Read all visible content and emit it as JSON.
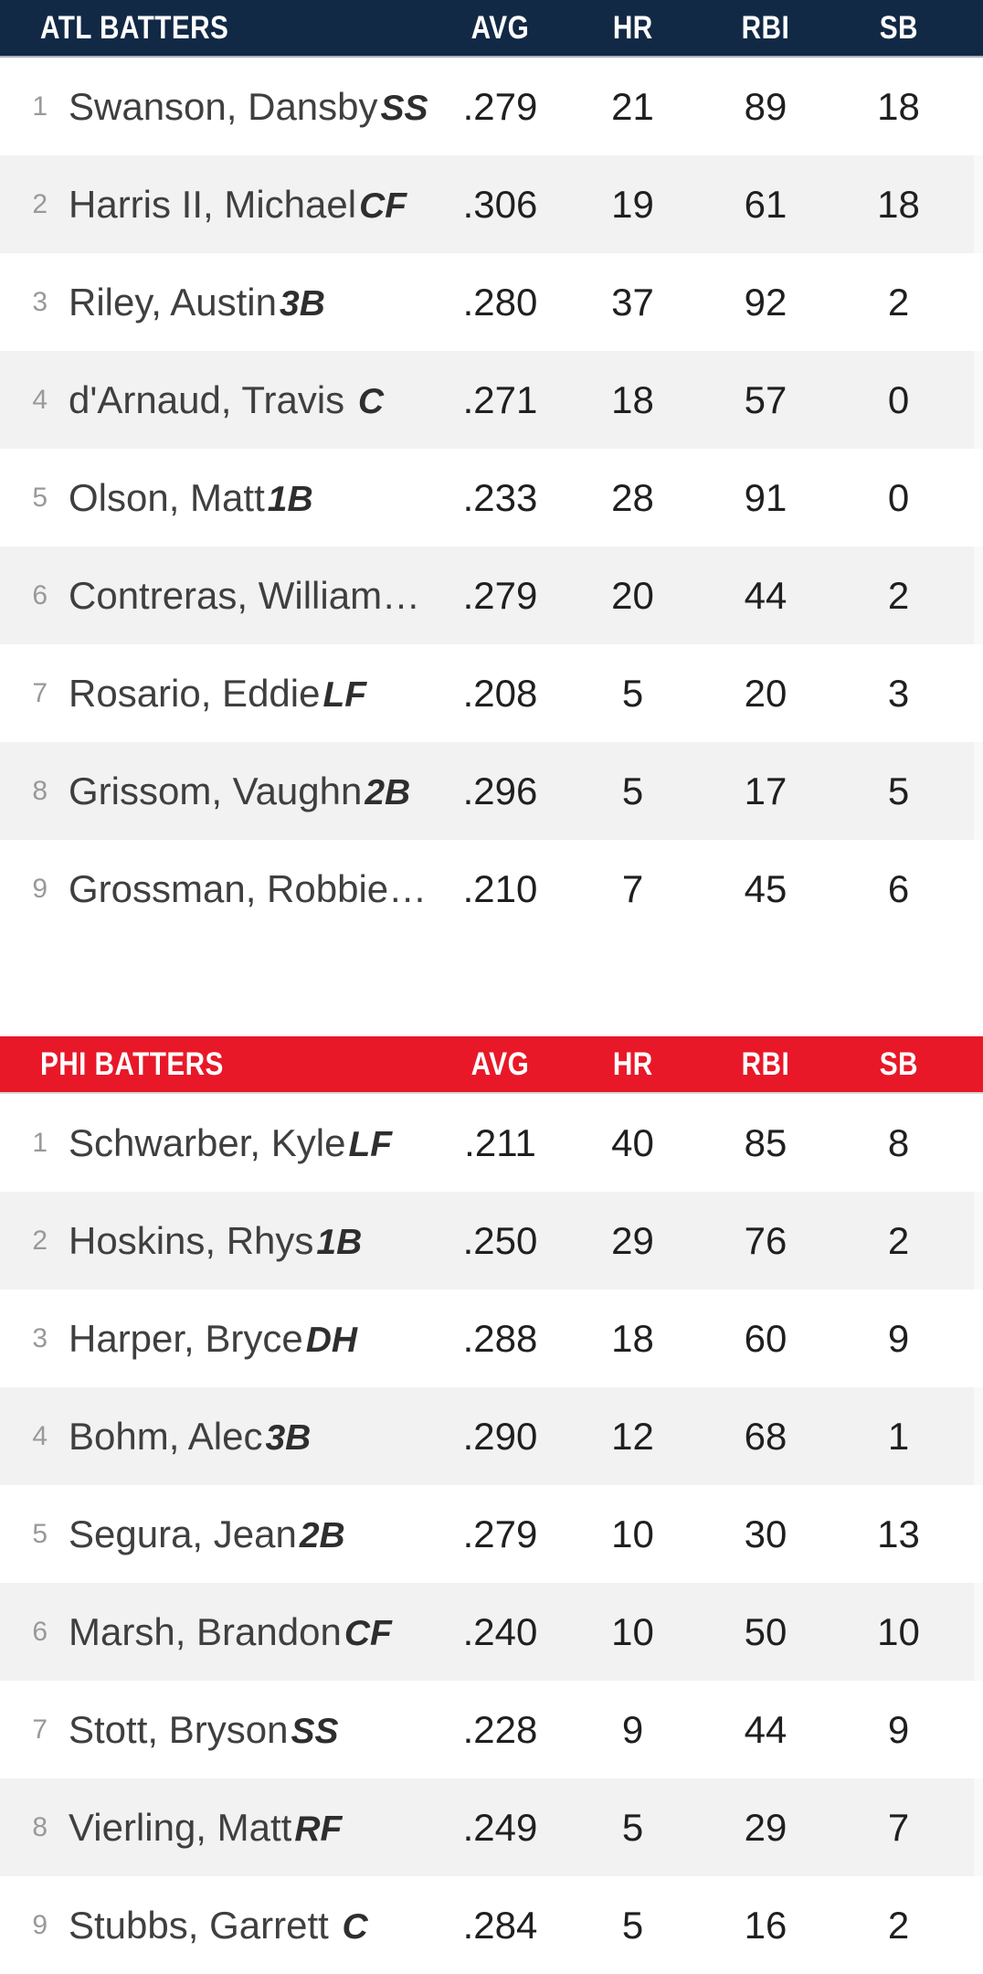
{
  "tables": [
    {
      "team": "ATL",
      "title": "ATL BATTERS",
      "header_bg": "#122946",
      "header_border": "#A8B1BD",
      "columns": [
        "AVG",
        "HR",
        "RBI",
        "SB"
      ],
      "rows": [
        {
          "rank": "1",
          "name": "Swanson, Dansby",
          "pos": "SS",
          "avg": ".279",
          "hr": "21",
          "rbi": "89",
          "sb": "18"
        },
        {
          "rank": "2",
          "name": "Harris II, Michael",
          "pos": "CF",
          "avg": ".306",
          "hr": "19",
          "rbi": "61",
          "sb": "18"
        },
        {
          "rank": "3",
          "name": "Riley, Austin",
          "pos": "3B",
          "avg": ".280",
          "hr": "37",
          "rbi": "92",
          "sb": "2"
        },
        {
          "rank": "4",
          "name": "d'Arnaud, Travis ",
          "pos": "C",
          "avg": ".271",
          "hr": "18",
          "rbi": "57",
          "sb": "0"
        },
        {
          "rank": "5",
          "name": "Olson, Matt",
          "pos": "1B",
          "avg": ".233",
          "hr": "28",
          "rbi": "91",
          "sb": "0"
        },
        {
          "rank": "6",
          "name": "Contreras, William…",
          "pos": "",
          "avg": ".279",
          "hr": "20",
          "rbi": "44",
          "sb": "2"
        },
        {
          "rank": "7",
          "name": "Rosario, Eddie",
          "pos": "LF",
          "avg": ".208",
          "hr": "5",
          "rbi": "20",
          "sb": "3"
        },
        {
          "rank": "8",
          "name": "Grissom, Vaughn",
          "pos": "2B",
          "avg": ".296",
          "hr": "5",
          "rbi": "17",
          "sb": "5"
        },
        {
          "rank": "9",
          "name": "Grossman, Robbie…",
          "pos": "",
          "avg": ".210",
          "hr": "7",
          "rbi": "45",
          "sb": "6"
        }
      ]
    },
    {
      "team": "PHI",
      "title": "PHI BATTERS",
      "header_bg": "#E81828",
      "header_border": "#D8D8D8",
      "columns": [
        "AVG",
        "HR",
        "RBI",
        "SB"
      ],
      "rows": [
        {
          "rank": "1",
          "name": "Schwarber, Kyle",
          "pos": "LF",
          "avg": ".211",
          "hr": "40",
          "rbi": "85",
          "sb": "8"
        },
        {
          "rank": "2",
          "name": "Hoskins, Rhys",
          "pos": "1B",
          "avg": ".250",
          "hr": "29",
          "rbi": "76",
          "sb": "2"
        },
        {
          "rank": "3",
          "name": "Harper, Bryce",
          "pos": "DH",
          "avg": ".288",
          "hr": "18",
          "rbi": "60",
          "sb": "9"
        },
        {
          "rank": "4",
          "name": "Bohm, Alec",
          "pos": "3B",
          "avg": ".290",
          "hr": "12",
          "rbi": "68",
          "sb": "1"
        },
        {
          "rank": "5",
          "name": "Segura, Jean",
          "pos": "2B",
          "avg": ".279",
          "hr": "10",
          "rbi": "30",
          "sb": "13"
        },
        {
          "rank": "6",
          "name": "Marsh, Brandon",
          "pos": "CF",
          "avg": ".240",
          "hr": "10",
          "rbi": "50",
          "sb": "10"
        },
        {
          "rank": "7",
          "name": "Stott, Bryson",
          "pos": "SS",
          "avg": ".228",
          "hr": "9",
          "rbi": "44",
          "sb": "9"
        },
        {
          "rank": "8",
          "name": "Vierling, Matt",
          "pos": "RF",
          "avg": ".249",
          "hr": "5",
          "rbi": "29",
          "sb": "7"
        },
        {
          "rank": "9",
          "name": "Stubbs, Garrett ",
          "pos": "C",
          "avg": ".284",
          "hr": "5",
          "rbi": "16",
          "sb": "2"
        }
      ]
    }
  ],
  "colors": {
    "row_alt": "#F2F2F2",
    "row_default": "#FFFFFF",
    "rank_text": "#999999",
    "name_text": "#3F3F3F",
    "position_text": "#2E2E2E",
    "stat_text": "#1F1F1F",
    "header_text": "#FFFFFF"
  }
}
